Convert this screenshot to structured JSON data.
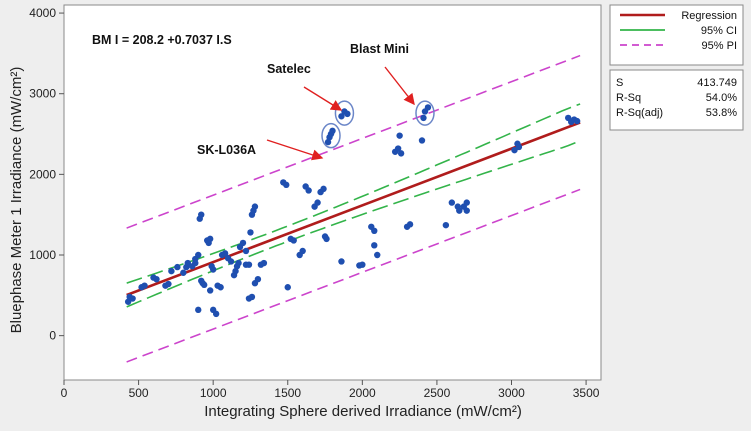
{
  "chart_data": {
    "type": "scatter",
    "xlabel": "Integrating Sphere derived Irradiance (mW/cm²)",
    "ylabel": "Bluephase Meter 1 Irradiance (mW/cm²)",
    "xlim": [
      0,
      3600
    ],
    "ylim": [
      -550,
      4100
    ],
    "xticks": [
      0,
      500,
      1000,
      1500,
      2000,
      2500,
      3000,
      3500
    ],
    "yticks": [
      0,
      1000,
      2000,
      3000,
      4000
    ],
    "grid": false,
    "legend_position": "right",
    "equation": "BM I = 208.2 +0.7037  I.S",
    "regression": {
      "intercept": 208.2,
      "slope": 0.7037
    },
    "ci_half_width_approx": 210,
    "pi_half_width_approx": 830,
    "legend": [
      {
        "label": "Regression",
        "color": "#b01c1c",
        "style": "solid"
      },
      {
        "label": "95% CI",
        "color": "#33b44a",
        "style": "solid"
      },
      {
        "label": "95% PI",
        "color": "#cc44cc",
        "style": "dashed"
      }
    ],
    "stats": [
      {
        "label": "S",
        "value": "413.749"
      },
      {
        "label": "R-Sq",
        "value": "54.0%"
      },
      {
        "label": "R-Sq(adj)",
        "value": "53.8%"
      }
    ],
    "annotations": [
      {
        "label": "Satelec",
        "target": [
          1880,
          2760
        ]
      },
      {
        "label": "SK-L036A",
        "target": [
          1790,
          2480
        ]
      },
      {
        "label": "Blast Mini",
        "target": [
          2420,
          2760
        ]
      }
    ],
    "points": [
      [
        430,
        420
      ],
      [
        440,
        480
      ],
      [
        460,
        460
      ],
      [
        520,
        600
      ],
      [
        540,
        620
      ],
      [
        600,
        720
      ],
      [
        620,
        700
      ],
      [
        680,
        620
      ],
      [
        700,
        640
      ],
      [
        720,
        800
      ],
      [
        760,
        850
      ],
      [
        800,
        780
      ],
      [
        820,
        850
      ],
      [
        830,
        900
      ],
      [
        860,
        860
      ],
      [
        880,
        900
      ],
      [
        880,
        950
      ],
      [
        900,
        1000
      ],
      [
        900,
        320
      ],
      [
        910,
        1450
      ],
      [
        920,
        1500
      ],
      [
        920,
        680
      ],
      [
        930,
        650
      ],
      [
        940,
        630
      ],
      [
        960,
        1180
      ],
      [
        970,
        1150
      ],
      [
        980,
        1200
      ],
      [
        980,
        560
      ],
      [
        990,
        860
      ],
      [
        1000,
        820
      ],
      [
        1000,
        320
      ],
      [
        1020,
        270
      ],
      [
        1030,
        620
      ],
      [
        1050,
        600
      ],
      [
        1060,
        1000
      ],
      [
        1080,
        1020
      ],
      [
        1100,
        960
      ],
      [
        1120,
        920
      ],
      [
        1140,
        750
      ],
      [
        1150,
        800
      ],
      [
        1160,
        860
      ],
      [
        1170,
        900
      ],
      [
        1180,
        1100
      ],
      [
        1200,
        1150
      ],
      [
        1220,
        1050
      ],
      [
        1220,
        880
      ],
      [
        1240,
        880
      ],
      [
        1250,
        1280
      ],
      [
        1260,
        1500
      ],
      [
        1270,
        1550
      ],
      [
        1280,
        1600
      ],
      [
        1240,
        460
      ],
      [
        1260,
        480
      ],
      [
        1280,
        650
      ],
      [
        1300,
        700
      ],
      [
        1320,
        880
      ],
      [
        1340,
        900
      ],
      [
        1470,
        1900
      ],
      [
        1490,
        1870
      ],
      [
        1500,
        600
      ],
      [
        1520,
        1200
      ],
      [
        1540,
        1180
      ],
      [
        1580,
        1000
      ],
      [
        1600,
        1050
      ],
      [
        1620,
        1850
      ],
      [
        1640,
        1800
      ],
      [
        1680,
        1600
      ],
      [
        1700,
        1650
      ],
      [
        1720,
        1780
      ],
      [
        1740,
        1820
      ],
      [
        1750,
        1230
      ],
      [
        1760,
        1200
      ],
      [
        1770,
        2400
      ],
      [
        1780,
        2460
      ],
      [
        1790,
        2500
      ],
      [
        1800,
        2540
      ],
      [
        1860,
        2720
      ],
      [
        1880,
        2780
      ],
      [
        1900,
        2750
      ],
      [
        1860,
        920
      ],
      [
        1980,
        870
      ],
      [
        2000,
        880
      ],
      [
        2060,
        1350
      ],
      [
        2080,
        1300
      ],
      [
        2080,
        1120
      ],
      [
        2100,
        1000
      ],
      [
        2220,
        2280
      ],
      [
        2240,
        2320
      ],
      [
        2250,
        2480
      ],
      [
        2260,
        2260
      ],
      [
        2300,
        1350
      ],
      [
        2320,
        1380
      ],
      [
        2400,
        2420
      ],
      [
        2410,
        2700
      ],
      [
        2420,
        2780
      ],
      [
        2440,
        2830
      ],
      [
        2560,
        1370
      ],
      [
        2600,
        1650
      ],
      [
        2640,
        1600
      ],
      [
        2650,
        1550
      ],
      [
        2680,
        1600
      ],
      [
        2700,
        1550
      ],
      [
        2700,
        1650
      ],
      [
        3020,
        2300
      ],
      [
        3040,
        2380
      ],
      [
        3050,
        2340
      ],
      [
        3380,
        2700
      ],
      [
        3400,
        2650
      ],
      [
        3420,
        2680
      ],
      [
        3440,
        2660
      ]
    ],
    "circled": [
      [
        1880,
        2760
      ],
      [
        1790,
        2480
      ],
      [
        2420,
        2760
      ]
    ]
  }
}
